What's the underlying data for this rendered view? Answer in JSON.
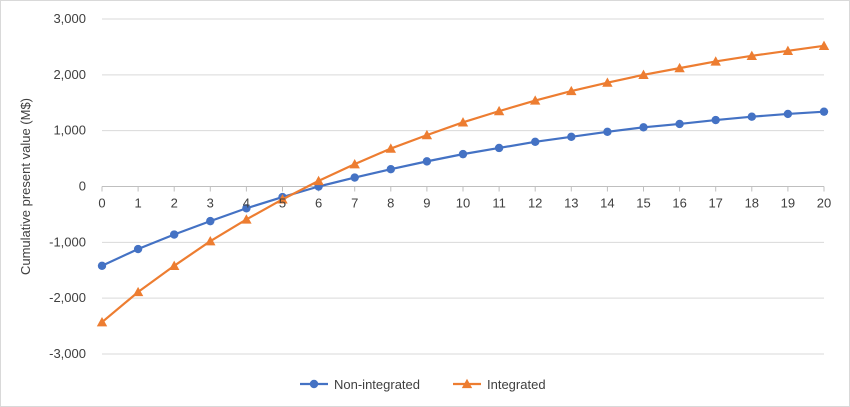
{
  "chart_data": {
    "type": "line",
    "title": "",
    "xlabel": "",
    "ylabel": "Cumulative present value (M$)",
    "x": [
      0,
      1,
      2,
      3,
      4,
      5,
      6,
      7,
      8,
      9,
      10,
      11,
      12,
      13,
      14,
      15,
      16,
      17,
      18,
      19,
      20
    ],
    "ylim": [
      -3000,
      3000
    ],
    "yticks": [
      -3000,
      -2000,
      -1000,
      0,
      1000,
      2000,
      3000
    ],
    "ytick_labels": [
      "-3,000",
      "-2,000",
      "-1,000",
      "0",
      "1,000",
      "2,000",
      "3,000"
    ],
    "grid": true,
    "legend_position": "bottom",
    "series": [
      {
        "name": "Non-integrated",
        "color": "#4472c4",
        "marker": "circle",
        "values": [
          -1420,
          -1120,
          -860,
          -620,
          -390,
          -190,
          0,
          160,
          310,
          450,
          580,
          690,
          800,
          890,
          980,
          1060,
          1120,
          1190,
          1250,
          1300,
          1340
        ]
      },
      {
        "name": "Integrated",
        "color": "#ed7d31",
        "marker": "triangle",
        "values": [
          -2430,
          -1890,
          -1420,
          -980,
          -590,
          -230,
          100,
          400,
          680,
          920,
          1150,
          1350,
          1540,
          1710,
          1860,
          2000,
          2120,
          2240,
          2340,
          2430,
          2520
        ]
      }
    ]
  }
}
